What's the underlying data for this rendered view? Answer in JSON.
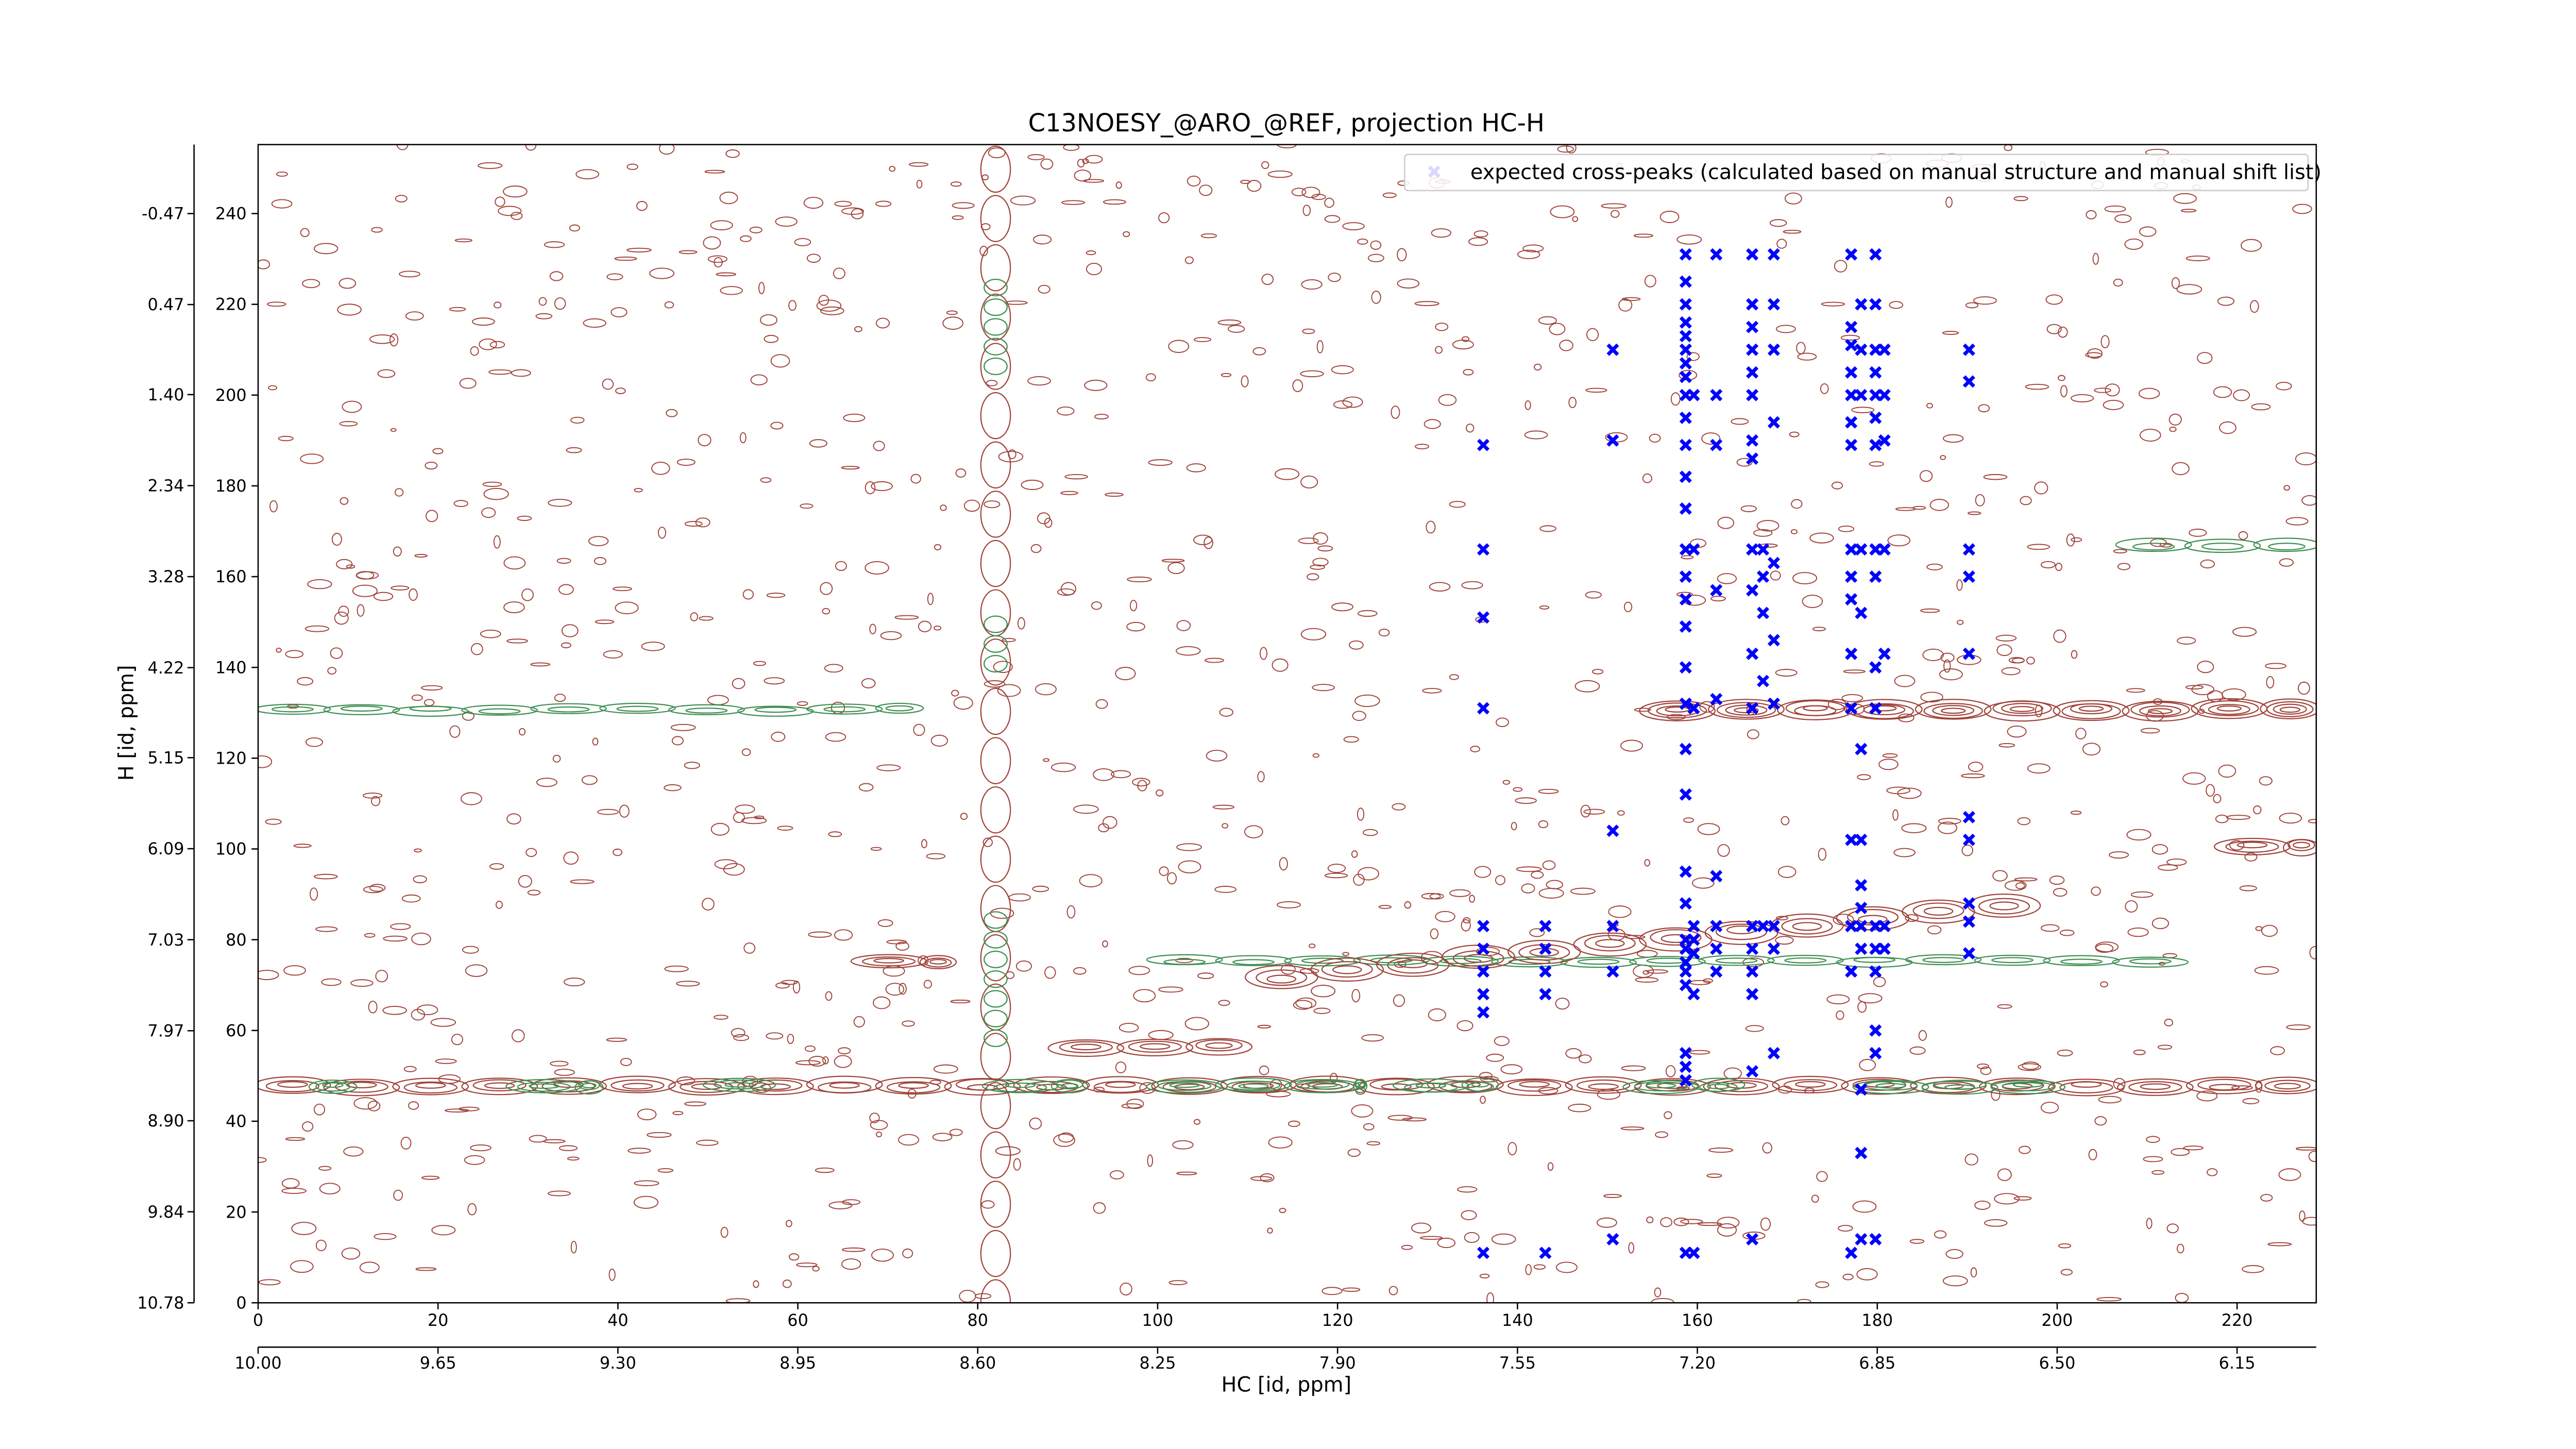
{
  "chart_data": {
    "type": "scatter",
    "title": "C13NOESY_@ARO_@REF, projection HC-H",
    "xlabel": "HC [id, ppm]",
    "ylabel": "H [id, ppm]",
    "xlim": [
      0,
      228.8
    ],
    "ylim": [
      0,
      255.2
    ],
    "xticks": [
      0,
      20,
      40,
      60,
      80,
      100,
      120,
      140,
      160,
      180,
      200,
      220
    ],
    "yticks": [
      0,
      20,
      40,
      60,
      80,
      100,
      120,
      140,
      160,
      180,
      200,
      220,
      240
    ],
    "x2lim": [
      10.0,
      5.996
    ],
    "x2ticks": [
      {
        "value": 10.0,
        "label": "10.00"
      },
      9.65,
      {
        "value": 9.3,
        "label": "9.30"
      },
      8.95,
      {
        "value": 8.6,
        "label": "8.60"
      },
      8.25,
      {
        "value": 7.9,
        "label": "7.90"
      },
      7.55,
      {
        "value": 7.2,
        "label": "7.20"
      },
      6.85,
      {
        "value": 6.5,
        "label": "6.50"
      },
      6.15
    ],
    "y2lim": [
      10.78,
      -1.1825
    ],
    "y2ticks": [
      10.78,
      9.84,
      {
        "value": 8.9,
        "label": "8.90"
      },
      7.97,
      7.03,
      6.09,
      5.15,
      4.22,
      3.28,
      2.34,
      {
        "value": 1.4,
        "label": "1.40"
      },
      0.47,
      -0.47
    ],
    "legend": "upper right",
    "x": [
      136.2,
      136.2,
      136.2,
      136.2,
      136.2,
      136.2,
      136.2,
      136.2,
      136.2,
      136.2,
      143.1,
      143.1,
      143.1,
      143.1,
      143.1,
      150.6,
      150.6,
      150.6,
      150.6,
      150.6,
      150.6,
      158.7,
      158.7,
      158.7,
      158.7,
      158.7,
      158.7,
      158.7,
      158.7,
      158.7,
      158.7,
      158.7,
      158.7,
      158.7,
      158.7,
      158.7,
      158.7,
      158.7,
      158.7,
      158.7,
      158.7,
      158.7,
      158.7,
      158.7,
      158.7,
      158.7,
      158.7,
      158.7,
      158.7,
      158.7,
      158.7,
      158.7,
      158.7,
      159.6,
      159.6,
      159.6,
      159.6,
      159.6,
      159.6,
      159.6,
      159.6,
      162.1,
      162.1,
      162.1,
      162.1,
      162.1,
      162.1,
      162.1,
      162.1,
      162.1,
      166.1,
      166.1,
      166.1,
      166.1,
      166.1,
      166.1,
      166.1,
      166.1,
      166.1,
      166.1,
      166.1,
      166.1,
      166.1,
      166.1,
      166.1,
      166.1,
      166.1,
      166.1,
      167.3,
      167.3,
      167.3,
      167.3,
      167.3,
      168.5,
      168.5,
      168.5,
      168.5,
      168.5,
      168.5,
      168.5,
      168.5,
      168.5,
      168.5,
      177.1,
      177.1,
      177.1,
      177.1,
      177.1,
      177.1,
      177.1,
      177.1,
      177.1,
      177.1,
      177.1,
      177.1,
      177.1,
      177.1,
      177.1,
      177.1,
      178.2,
      178.2,
      178.2,
      178.2,
      178.2,
      178.2,
      178.2,
      178.2,
      178.2,
      178.2,
      178.2,
      178.2,
      178.2,
      178.2,
      179.8,
      179.8,
      179.8,
      179.8,
      179.8,
      179.8,
      179.8,
      179.8,
      179.8,
      179.8,
      179.8,
      179.8,
      179.8,
      179.8,
      179.8,
      179.8,
      179.8,
      180.8,
      180.8,
      180.8,
      180.8,
      180.8,
      180.8,
      180.8,
      190.2,
      190.2,
      190.2,
      190.2,
      190.2,
      190.2,
      190.2,
      190.2,
      190.2,
      190.2
    ],
    "series": [
      {
        "name": "expected cross-peaks (calculated based on manual structure and manual shift list)",
        "color": "#0000ff",
        "values": [
          189,
          166,
          151,
          131,
          83,
          78,
          73,
          68,
          64,
          11,
          83,
          78,
          73,
          68,
          11,
          210,
          190,
          104,
          83,
          73,
          14,
          231,
          225,
          220,
          216,
          213,
          210,
          207,
          204,
          200,
          195,
          189,
          182,
          175,
          166,
          160,
          155,
          149,
          140,
          132,
          122,
          112,
          95,
          88,
          80,
          78,
          75,
          73,
          70,
          55,
          52,
          49,
          11,
          200,
          166,
          131,
          83,
          80,
          77,
          68,
          11,
          231,
          200,
          189,
          157,
          133,
          94,
          83,
          78,
          73,
          231,
          220,
          215,
          210,
          205,
          200,
          190,
          186,
          166,
          157,
          143,
          131,
          83,
          78,
          73,
          68,
          51,
          14,
          166,
          160,
          152,
          137,
          83,
          231,
          220,
          210,
          194,
          163,
          146,
          132,
          83,
          78,
          55,
          231,
          215,
          211,
          205,
          200,
          194,
          189,
          166,
          160,
          155,
          143,
          131,
          102,
          83,
          73,
          11,
          220,
          210,
          200,
          166,
          152,
          122,
          102,
          92,
          87,
          83,
          78,
          47,
          33,
          14,
          231,
          220,
          210,
          205,
          200,
          195,
          189,
          166,
          160,
          140,
          131,
          83,
          78,
          73,
          60,
          55,
          14,
          210,
          200,
          190,
          166,
          143,
          83,
          78,
          210,
          203,
          166,
          160,
          143,
          107,
          102,
          88,
          84,
          77
        ]
      }
    ]
  }
}
